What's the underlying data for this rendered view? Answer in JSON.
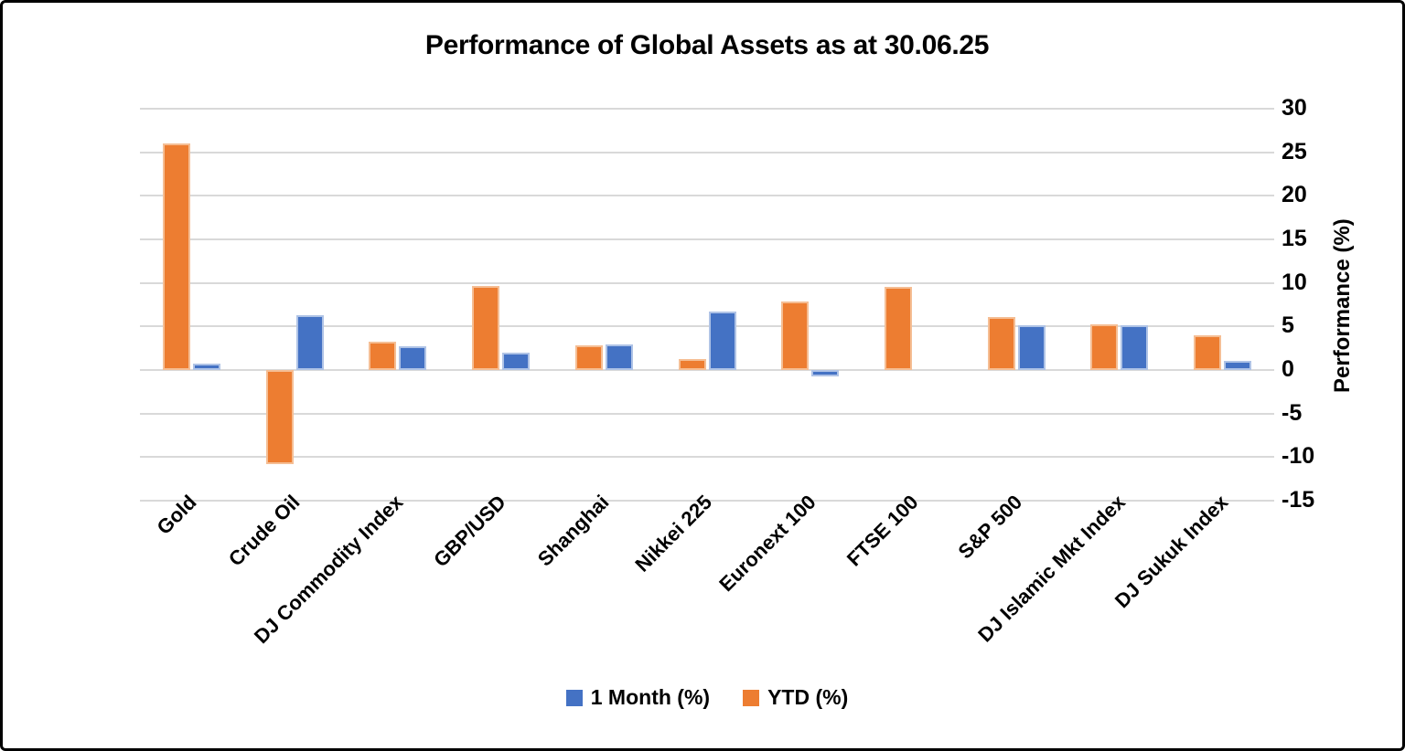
{
  "chart_data": {
    "type": "bar",
    "title": "Performance of Global Assets as at 30.06.25",
    "ylabel": "Performance (%)",
    "ylim": [
      -15,
      30
    ],
    "ytick_step": 5,
    "ytick_labels": [
      "30",
      "25",
      "20",
      "15",
      "10",
      "5",
      "0",
      "-5",
      "-10",
      "-15"
    ],
    "grid": true,
    "legend_position": "bottom",
    "categories": [
      "Gold",
      "Crude Oil",
      "DJ Commodity Index",
      "GBP/USD",
      "Shanghai",
      "Nikkei 225",
      "Euronext 100",
      "FTSE 100",
      "S&P 500",
      "DJ Islamic Mkt Index",
      "DJ Sukuk Index"
    ],
    "series": [
      {
        "name": "YTD (%)",
        "color": "#ED7D31",
        "border_color": "#F5BE94",
        "values": [
          26.0,
          -10.8,
          3.3,
          9.7,
          2.8,
          1.3,
          7.9,
          9.5,
          6.1,
          5.2,
          4.0
        ]
      },
      {
        "name": "1 Month (%)",
        "color": "#4472C4",
        "border_color": "#AFC3E6",
        "values": [
          0.7,
          6.3,
          2.7,
          2.0,
          2.9,
          6.7,
          -0.7,
          0.0,
          5.1,
          5.1,
          1.0
        ]
      }
    ],
    "legend": [
      {
        "label": "1 Month (%)",
        "color": "#4472C4"
      },
      {
        "label": "YTD (%)",
        "color": "#ED7D31"
      }
    ]
  }
}
